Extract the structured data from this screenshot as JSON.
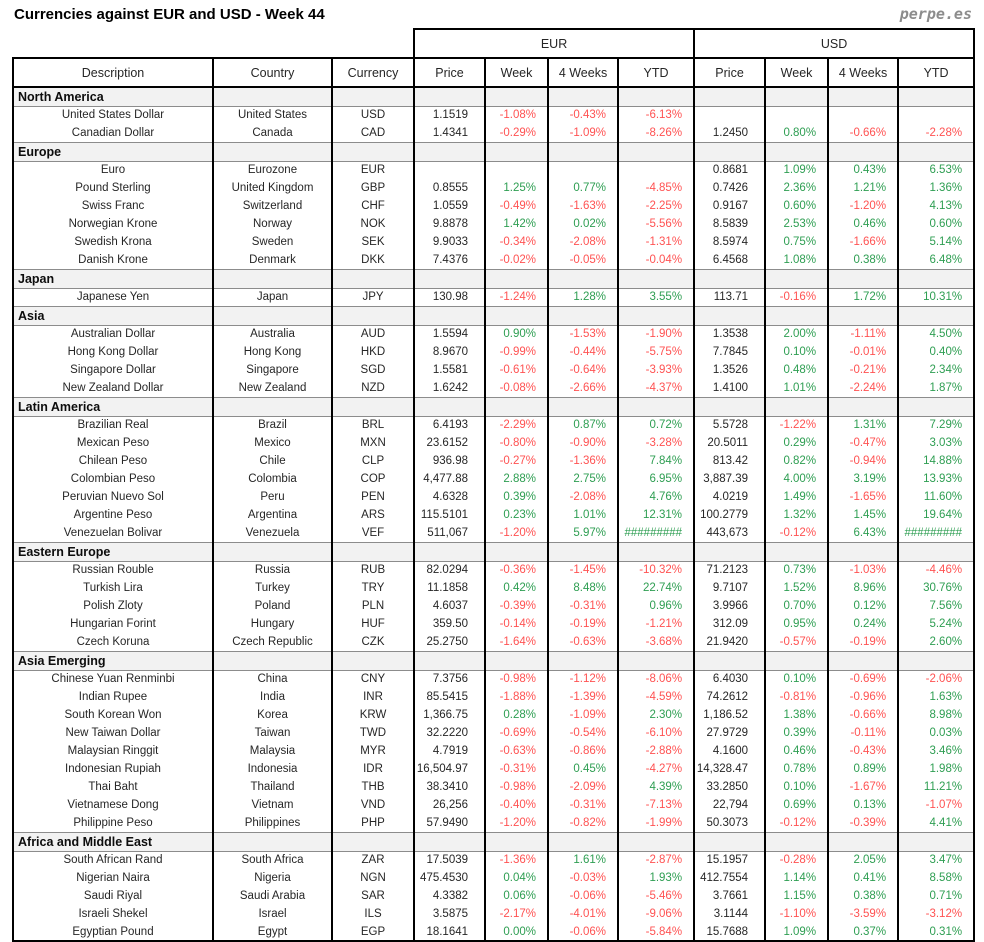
{
  "title": "Currencies against EUR and USD - Week 44",
  "logo": "perpe.es",
  "colors": {
    "positive": "#2e9e52",
    "negative": "#ff5252",
    "section_bg": "#f2f2f2",
    "logo_gray": "#8c8c8c"
  },
  "chart_data": {
    "type": "table",
    "title": "Currencies against EUR and USD - Week 44",
    "group_headers": [
      "EUR",
      "USD"
    ],
    "columns": [
      "Description",
      "Country",
      "Currency",
      "Price",
      "Week",
      "4 Weeks",
      "YTD",
      "Price",
      "Week",
      "4 Weeks",
      "YTD"
    ],
    "sections": [
      {
        "name": "North America",
        "rows": [
          [
            "United States Dollar",
            "United States",
            "USD",
            "1.1519",
            "-1.08%",
            "-0.43%",
            "-6.13%",
            "",
            "",
            "",
            ""
          ],
          [
            "Canadian Dollar",
            "Canada",
            "CAD",
            "1.4341",
            "-0.29%",
            "-1.09%",
            "-8.26%",
            "1.2450",
            "0.80%",
            "-0.66%",
            "-2.28%"
          ]
        ]
      },
      {
        "name": "Europe",
        "rows": [
          [
            "Euro",
            "Eurozone",
            "EUR",
            "",
            "",
            "",
            "",
            "0.8681",
            "1.09%",
            "0.43%",
            "6.53%"
          ],
          [
            "Pound Sterling",
            "United Kingdom",
            "GBP",
            "0.8555",
            "1.25%",
            "0.77%",
            "-4.85%",
            "0.7426",
            "2.36%",
            "1.21%",
            "1.36%"
          ],
          [
            "Swiss Franc",
            "Switzerland",
            "CHF",
            "1.0559",
            "-0.49%",
            "-1.63%",
            "-2.25%",
            "0.9167",
            "0.60%",
            "-1.20%",
            "4.13%"
          ],
          [
            "Norwegian Krone",
            "Norway",
            "NOK",
            "9.8878",
            "1.42%",
            "0.02%",
            "-5.56%",
            "8.5839",
            "2.53%",
            "0.46%",
            "0.60%"
          ],
          [
            "Swedish Krona",
            "Sweden",
            "SEK",
            "9.9033",
            "-0.34%",
            "-2.08%",
            "-1.31%",
            "8.5974",
            "0.75%",
            "-1.66%",
            "5.14%"
          ],
          [
            "Danish Krone",
            "Denmark",
            "DKK",
            "7.4376",
            "-0.02%",
            "-0.05%",
            "-0.04%",
            "6.4568",
            "1.08%",
            "0.38%",
            "6.48%"
          ]
        ]
      },
      {
        "name": "Japan",
        "rows": [
          [
            "Japanese Yen",
            "Japan",
            "JPY",
            "130.98",
            "-1.24%",
            "1.28%",
            "3.55%",
            "113.71",
            "-0.16%",
            "1.72%",
            "10.31%"
          ]
        ]
      },
      {
        "name": "Asia",
        "rows": [
          [
            "Australian Dollar",
            "Australia",
            "AUD",
            "1.5594",
            "0.90%",
            "-1.53%",
            "-1.90%",
            "1.3538",
            "2.00%",
            "-1.11%",
            "4.50%"
          ],
          [
            "Hong Kong Dollar",
            "Hong Kong",
            "HKD",
            "8.9670",
            "-0.99%",
            "-0.44%",
            "-5.75%",
            "7.7845",
            "0.10%",
            "-0.01%",
            "0.40%"
          ],
          [
            "Singapore Dollar",
            "Singapore",
            "SGD",
            "1.5581",
            "-0.61%",
            "-0.64%",
            "-3.93%",
            "1.3526",
            "0.48%",
            "-0.21%",
            "2.34%"
          ],
          [
            "New Zealand Dollar",
            "New Zealand",
            "NZD",
            "1.6242",
            "-0.08%",
            "-2.66%",
            "-4.37%",
            "1.4100",
            "1.01%",
            "-2.24%",
            "1.87%"
          ]
        ]
      },
      {
        "name": "Latin America",
        "rows": [
          [
            "Brazilian Real",
            "Brazil",
            "BRL",
            "6.4193",
            "-2.29%",
            "0.87%",
            "0.72%",
            "5.5728",
            "-1.22%",
            "1.31%",
            "7.29%"
          ],
          [
            "Mexican Peso",
            "Mexico",
            "MXN",
            "23.6152",
            "-0.80%",
            "-0.90%",
            "-3.28%",
            "20.5011",
            "0.29%",
            "-0.47%",
            "3.03%"
          ],
          [
            "Chilean Peso",
            "Chile",
            "CLP",
            "936.98",
            "-0.27%",
            "-1.36%",
            "7.84%",
            "813.42",
            "0.82%",
            "-0.94%",
            "14.88%"
          ],
          [
            "Colombian Peso",
            "Colombia",
            "COP",
            "4,477.88",
            "2.88%",
            "2.75%",
            "6.95%",
            "3,887.39",
            "4.00%",
            "3.19%",
            "13.93%"
          ],
          [
            "Peruvian Nuevo Sol",
            "Peru",
            "PEN",
            "4.6328",
            "0.39%",
            "-2.08%",
            "4.76%",
            "4.0219",
            "1.49%",
            "-1.65%",
            "11.60%"
          ],
          [
            "Argentine Peso",
            "Argentina",
            "ARS",
            "115.5101",
            "0.23%",
            "1.01%",
            "12.31%",
            "100.2779",
            "1.32%",
            "1.45%",
            "19.64%"
          ],
          [
            "Venezuelan Bolivar",
            "Venezuela",
            "VEF",
            "511,067",
            "-1.20%",
            "5.97%",
            "#########",
            "443,673",
            "-0.12%",
            "6.43%",
            "#########"
          ]
        ]
      },
      {
        "name": "Eastern Europe",
        "rows": [
          [
            "Russian Rouble",
            "Russia",
            "RUB",
            "82.0294",
            "-0.36%",
            "-1.45%",
            "-10.32%",
            "71.2123",
            "0.73%",
            "-1.03%",
            "-4.46%"
          ],
          [
            "Turkish Lira",
            "Turkey",
            "TRY",
            "11.1858",
            "0.42%",
            "8.48%",
            "22.74%",
            "9.7107",
            "1.52%",
            "8.96%",
            "30.76%"
          ],
          [
            "Polish Zloty",
            "Poland",
            "PLN",
            "4.6037",
            "-0.39%",
            "-0.31%",
            "0.96%",
            "3.9966",
            "0.70%",
            "0.12%",
            "7.56%"
          ],
          [
            "Hungarian Forint",
            "Hungary",
            "HUF",
            "359.50",
            "-0.14%",
            "-0.19%",
            "-1.21%",
            "312.09",
            "0.95%",
            "0.24%",
            "5.24%"
          ],
          [
            "Czech Koruna",
            "Czech Republic",
            "CZK",
            "25.2750",
            "-1.64%",
            "-0.63%",
            "-3.68%",
            "21.9420",
            "-0.57%",
            "-0.19%",
            "2.60%"
          ]
        ]
      },
      {
        "name": "Asia Emerging",
        "rows": [
          [
            "Chinese Yuan Renminbi",
            "China",
            "CNY",
            "7.3756",
            "-0.98%",
            "-1.12%",
            "-8.06%",
            "6.4030",
            "0.10%",
            "-0.69%",
            "-2.06%"
          ],
          [
            "Indian Rupee",
            "India",
            "INR",
            "85.5415",
            "-1.88%",
            "-1.39%",
            "-4.59%",
            "74.2612",
            "-0.81%",
            "-0.96%",
            "1.63%"
          ],
          [
            "South Korean Won",
            "Korea",
            "KRW",
            "1,366.75",
            "0.28%",
            "-1.09%",
            "2.30%",
            "1,186.52",
            "1.38%",
            "-0.66%",
            "8.98%"
          ],
          [
            "New Taiwan Dollar",
            "Taiwan",
            "TWD",
            "32.2220",
            "-0.69%",
            "-0.54%",
            "-6.10%",
            "27.9729",
            "0.39%",
            "-0.11%",
            "0.03%"
          ],
          [
            "Malaysian Ringgit",
            "Malaysia",
            "MYR",
            "4.7919",
            "-0.63%",
            "-0.86%",
            "-2.88%",
            "4.1600",
            "0.46%",
            "-0.43%",
            "3.46%"
          ],
          [
            "Indonesian Rupiah",
            "Indonesia",
            "IDR",
            "16,504.97",
            "-0.31%",
            "0.45%",
            "-4.27%",
            "14,328.47",
            "0.78%",
            "0.89%",
            "1.98%"
          ],
          [
            "Thai Baht",
            "Thailand",
            "THB",
            "38.3410",
            "-0.98%",
            "-2.09%",
            "4.39%",
            "33.2850",
            "0.10%",
            "-1.67%",
            "11.21%"
          ],
          [
            "Vietnamese Dong",
            "Vietnam",
            "VND",
            "26,256",
            "-0.40%",
            "-0.31%",
            "-7.13%",
            "22,794",
            "0.69%",
            "0.13%",
            "-1.07%"
          ],
          [
            "Philippine Peso",
            "Philippines",
            "PHP",
            "57.9490",
            "-1.20%",
            "-0.82%",
            "-1.99%",
            "50.3073",
            "-0.12%",
            "-0.39%",
            "4.41%"
          ]
        ]
      },
      {
        "name": "Africa and Middle East",
        "rows": [
          [
            "South African Rand",
            "South Africa",
            "ZAR",
            "17.5039",
            "-1.36%",
            "1.61%",
            "-2.87%",
            "15.1957",
            "-0.28%",
            "2.05%",
            "3.47%"
          ],
          [
            "Nigerian Naira",
            "Nigeria",
            "NGN",
            "475.4530",
            "0.04%",
            "-0.03%",
            "1.93%",
            "412.7554",
            "1.14%",
            "0.41%",
            "8.58%"
          ],
          [
            "Saudi Riyal",
            "Saudi Arabia",
            "SAR",
            "4.3382",
            "0.06%",
            "-0.06%",
            "-5.46%",
            "3.7661",
            "1.15%",
            "0.38%",
            "0.71%"
          ],
          [
            "Israeli Shekel",
            "Israel",
            "ILS",
            "3.5875",
            "-2.17%",
            "-4.01%",
            "-9.06%",
            "3.1144",
            "-1.10%",
            "-3.59%",
            "-3.12%"
          ],
          [
            "Egyptian Pound",
            "Egypt",
            "EGP",
            "18.1641",
            "0.00%",
            "-0.06%",
            "-5.84%",
            "15.7688",
            "1.09%",
            "0.37%",
            "0.31%"
          ]
        ]
      }
    ]
  }
}
